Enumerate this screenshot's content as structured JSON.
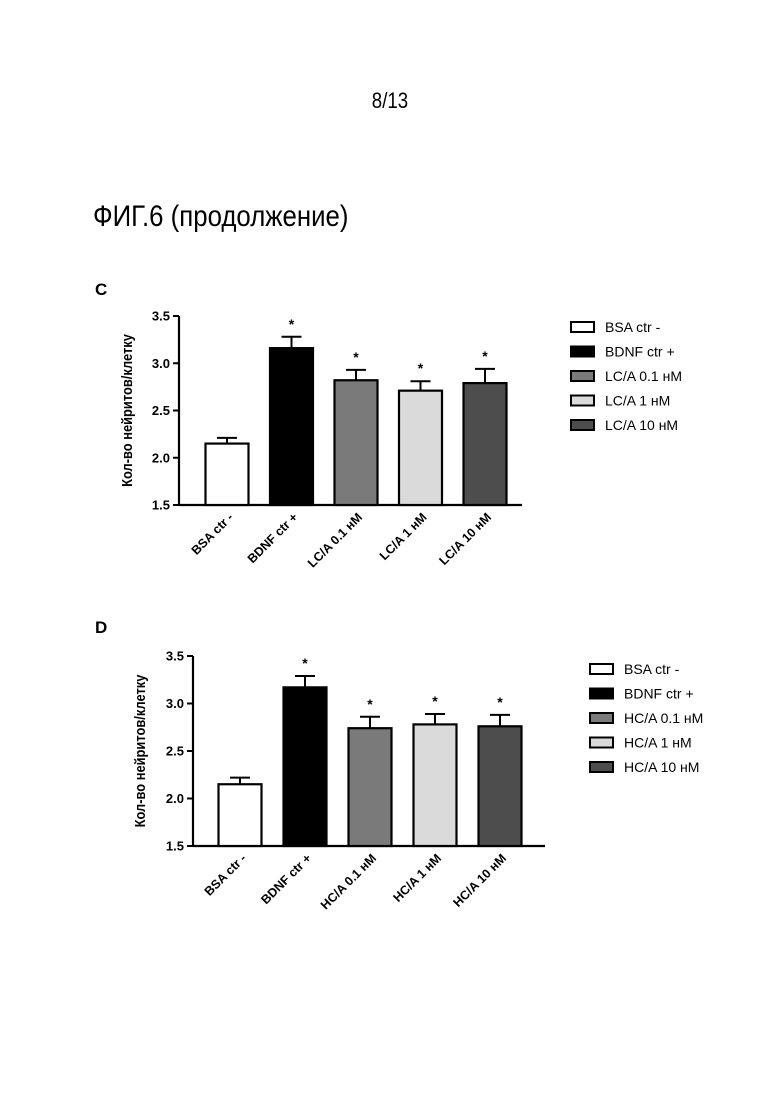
{
  "page": {
    "number": "8/13",
    "figure_title": "ФИГ.6 (продолжение)"
  },
  "colors": {
    "white": "#ffffff",
    "black": "#000000",
    "gray_mid": "#7a7a7a",
    "gray_light": "#dadada",
    "gray_dark": "#4d4d4d"
  },
  "chart_data": [
    {
      "panel": "C",
      "type": "bar",
      "ylabel": "Кол-во нейритов/клетку",
      "ylim": [
        1.5,
        3.5
      ],
      "yticks": [
        "1.5",
        "2.0",
        "2.5",
        "3.0",
        "3.5"
      ],
      "categories": [
        "BSA ctr -",
        "BDNF ctr +",
        "LC/A 0.1 нМ",
        "LC/A 1 нМ",
        "LC/A 10 нМ"
      ],
      "values": [
        2.15,
        3.16,
        2.82,
        2.71,
        2.79
      ],
      "errors": [
        0.06,
        0.12,
        0.11,
        0.1,
        0.15
      ],
      "significance": [
        "",
        "*",
        "*",
        "*",
        "*"
      ],
      "fills": [
        "#ffffff",
        "#000000",
        "#7a7a7a",
        "#dadada",
        "#4d4d4d"
      ],
      "legend": [
        "BSA ctr -",
        "BDNF ctr +",
        "LC/A 0.1 нМ",
        "LC/A 1 нМ",
        "LC/A 10 нМ"
      ],
      "legend_position": "right"
    },
    {
      "panel": "D",
      "type": "bar",
      "ylabel": "Кол-во нейритов/клетку",
      "ylim": [
        1.5,
        3.5
      ],
      "yticks": [
        "1.5",
        "2.0",
        "2.5",
        "3.0",
        "3.5"
      ],
      "categories": [
        "BSA ctr -",
        "BDNF ctr +",
        "HC/A 0.1 нМ",
        "HC/A 1 нМ",
        "HC/A 10 нМ"
      ],
      "values": [
        2.15,
        3.17,
        2.74,
        2.78,
        2.76
      ],
      "errors": [
        0.07,
        0.12,
        0.12,
        0.11,
        0.12
      ],
      "significance": [
        "",
        "*",
        "*",
        "*",
        "*"
      ],
      "fills": [
        "#ffffff",
        "#000000",
        "#7a7a7a",
        "#dadada",
        "#4d4d4d"
      ],
      "legend": [
        "BSA ctr -",
        "BDNF ctr +",
        "HC/A 0.1 нМ",
        "HC/A 1 нМ",
        "HC/A 10 нМ"
      ],
      "legend_position": "right"
    }
  ]
}
